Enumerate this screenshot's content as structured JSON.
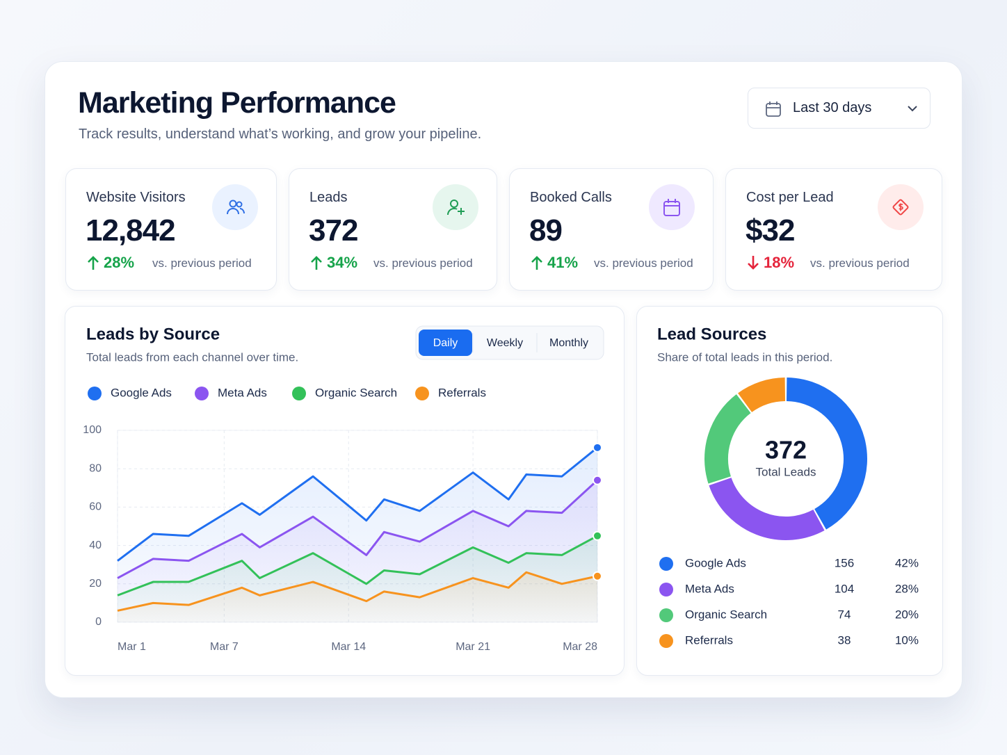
{
  "header": {
    "title": "Marketing Performance",
    "subtitle": "Track results, understand what’s working, and grow your pipeline.",
    "date_range": "Last 30 days"
  },
  "kpis": [
    {
      "label": "Website Visitors",
      "value": "12,842",
      "change": "28%",
      "trend": "up",
      "note": "vs. previous period"
    },
    {
      "label": "Leads",
      "value": "372",
      "change": "34%",
      "trend": "up",
      "note": "vs. previous period"
    },
    {
      "label": "Booked Calls",
      "value": "89",
      "change": "41%",
      "trend": "up",
      "note": "vs. previous period"
    },
    {
      "label": "Cost per Lead",
      "value": "$32",
      "change": "18%",
      "trend": "down",
      "note": "vs. previous period"
    }
  ],
  "chart_data": [
    {
      "type": "line",
      "title": "Leads by Source",
      "subtitle": "Total leads from each channel over time.",
      "tabs": [
        "Daily",
        "Weekly",
        "Monthly"
      ],
      "active_tab": 0,
      "x": [
        1,
        3,
        5,
        8,
        9,
        12,
        15,
        16,
        18,
        21,
        23,
        24,
        26,
        28
      ],
      "xlim": [
        1,
        28
      ],
      "xticks": [
        {
          "value": 1,
          "label": "Mar 1"
        },
        {
          "value": 7,
          "label": "Mar 7"
        },
        {
          "value": 14,
          "label": "Mar 14"
        },
        {
          "value": 21,
          "label": "Mar 21"
        },
        {
          "value": 28,
          "label": "Mar 28"
        }
      ],
      "ylim": [
        0,
        100
      ],
      "yticks": [
        0,
        20,
        40,
        60,
        80,
        100
      ],
      "grid": true,
      "series": [
        {
          "name": "Google Ads",
          "color": "#1f6ff0",
          "values": [
            32,
            46,
            45,
            62,
            56,
            76,
            53,
            64,
            58,
            78,
            64,
            77,
            76,
            91
          ]
        },
        {
          "name": "Meta Ads",
          "color": "#8b55f0",
          "values": [
            23,
            33,
            32,
            46,
            39,
            55,
            35,
            47,
            42,
            58,
            50,
            58,
            57,
            74
          ]
        },
        {
          "name": "Organic Search",
          "color": "#33c159",
          "values": [
            14,
            21,
            21,
            32,
            23,
            36,
            20,
            27,
            25,
            39,
            31,
            36,
            35,
            45
          ]
        },
        {
          "name": "Referrals",
          "color": "#f7931e",
          "values": [
            6,
            10,
            9,
            18,
            14,
            21,
            11,
            16,
            13,
            23,
            18,
            26,
            20,
            24
          ]
        }
      ]
    },
    {
      "type": "pie",
      "donut": true,
      "title": "Lead Sources",
      "subtitle": "Share of total leads in this period.",
      "center_value": "372",
      "center_label": "Total Leads",
      "categories": [
        "Google Ads",
        "Meta Ads",
        "Organic Search",
        "Referrals"
      ],
      "values": [
        156,
        104,
        74,
        38
      ],
      "shares": [
        "42%",
        "28%",
        "20%",
        "10%"
      ],
      "colors": [
        "#1f6ff0",
        "#8b55f0",
        "#52c97a",
        "#f7931e"
      ]
    }
  ]
}
